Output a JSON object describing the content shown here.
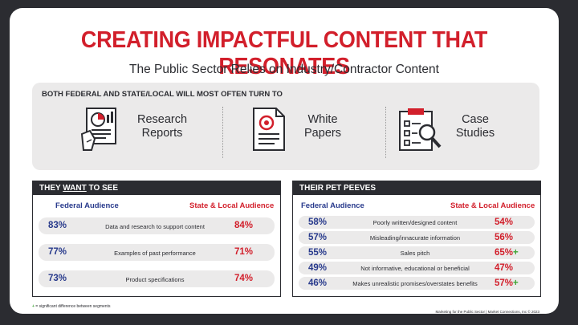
{
  "title": "CREATING IMPACTFUL CONTENT THAT RESONATES",
  "subtitle": "The Public Sector Relies on Industry/Contractor Content",
  "turn_to": {
    "label": "BOTH FEDERAL AND STATE/LOCAL WILL MOST OFTEN TURN TO",
    "items": [
      {
        "line1": "Research",
        "line2": "Reports",
        "icon": "research-report-icon"
      },
      {
        "line1": "White",
        "line2": "Papers",
        "icon": "white-paper-icon"
      },
      {
        "line1": "Case",
        "line2": "Studies",
        "icon": "case-study-icon"
      }
    ]
  },
  "want": {
    "heading_pre": "THEY ",
    "heading_emph": "WANT",
    "heading_post": " TO SEE",
    "federal_label": "Federal Audience",
    "state_label": "State & Local Audience",
    "rows": [
      {
        "federal": "83%",
        "label": "Data and research to support content",
        "state": "84%",
        "plus": ""
      },
      {
        "federal": "77%",
        "label": "Examples of past performance",
        "state": "71%",
        "plus": ""
      },
      {
        "federal": "73%",
        "label": "Product specifications",
        "state": "74%",
        "plus": ""
      }
    ]
  },
  "peeves": {
    "heading": "THEIR PET PEEVES",
    "federal_label": "Federal Audience",
    "state_label": "State & Local Audience",
    "rows": [
      {
        "federal": "58%",
        "label": "Poorly written/designed content",
        "state": "54%",
        "plus": ""
      },
      {
        "federal": "57%",
        "label": "Misleading/innacurate information",
        "state": "56%",
        "plus": ""
      },
      {
        "federal": "55%",
        "label": "Sales pitch",
        "state": "65%",
        "plus": "+"
      },
      {
        "federal": "49%",
        "label": "Not informative, educational or beneficial",
        "state": "47%",
        "plus": ""
      },
      {
        "federal": "46%",
        "label": "Makes unrealistic promises/overstates benefits",
        "state": "57%",
        "plus": "+"
      }
    ]
  },
  "footnote": {
    "plus": "+",
    "text": " = significant difference between segments"
  },
  "credit": "Marketing for the Public Sector | Market Connections, Inc © 2023",
  "colors": {
    "red": "#d21f2b",
    "navy": "#283a8c",
    "dark": "#2b2c31",
    "green": "#3fa535",
    "panel_bg": "#ebeaea"
  }
}
